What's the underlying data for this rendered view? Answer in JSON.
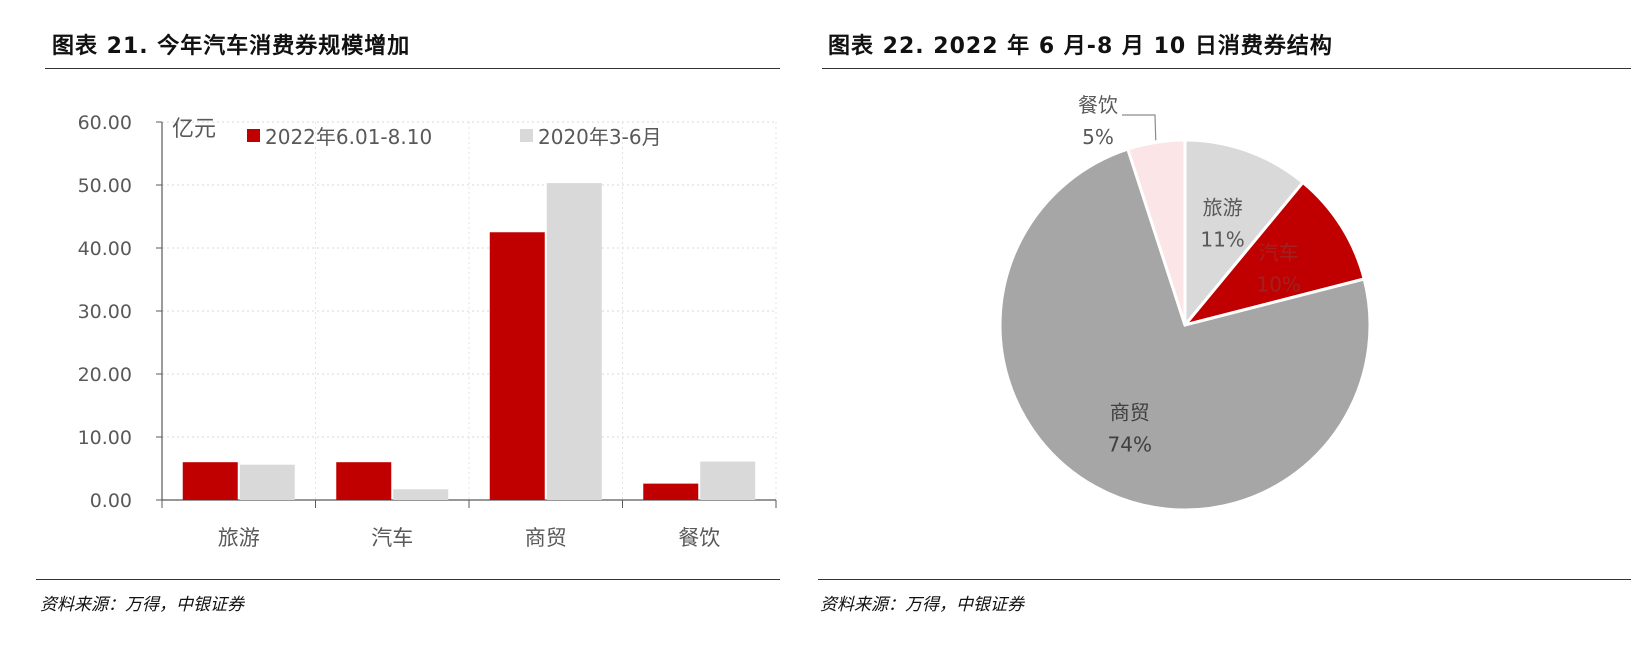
{
  "left": {
    "title": "图表 21. 今年汽车消费券规模增加",
    "source": "资料来源：万得，中银证券"
  },
  "right": {
    "title": "图表 22. 2022 年 6 月-8 月 10 日消费券结构",
    "source": "资料来源：万得，中银证券"
  },
  "colors": {
    "red": "#c00000",
    "light_gray": "#d9d9d9",
    "mid_gray": "#a6a6a6",
    "pink": "#fbe5e6",
    "axis": "#595959"
  },
  "chart_data": [
    {
      "type": "bar",
      "title": "图表 21. 今年汽车消费券规模增加",
      "ylabel": "亿元",
      "categories": [
        "旅游",
        "汽车",
        "商贸",
        "餐饮"
      ],
      "ylim": [
        0,
        60
      ],
      "yticks": [
        "0.00",
        "10.00",
        "20.00",
        "30.00",
        "40.00",
        "50.00",
        "60.00"
      ],
      "grid": true,
      "legend_position": "top",
      "series": [
        {
          "name": "2022年6.01-8.10",
          "color": "#c00000",
          "values": [
            6.0,
            6.0,
            42.5,
            2.6
          ]
        },
        {
          "name": "2020年3-6月",
          "color": "#d9d9d9",
          "values": [
            5.6,
            1.7,
            50.3,
            6.1
          ]
        }
      ]
    },
    {
      "type": "pie",
      "title": "图表 22. 2022 年 6 月-8 月 10 日消费券结构",
      "slices": [
        {
          "label": "旅游",
          "percent_label": "11%",
          "value": 11,
          "color": "#d9d9d9"
        },
        {
          "label": "汽车",
          "percent_label": "10%",
          "value": 10,
          "color": "#c00000"
        },
        {
          "label": "商贸",
          "percent_label": "74%",
          "value": 74,
          "color": "#a6a6a6"
        },
        {
          "label": "餐饮",
          "percent_label": "5%",
          "value": 5,
          "color": "#fbe5e6"
        }
      ]
    }
  ]
}
